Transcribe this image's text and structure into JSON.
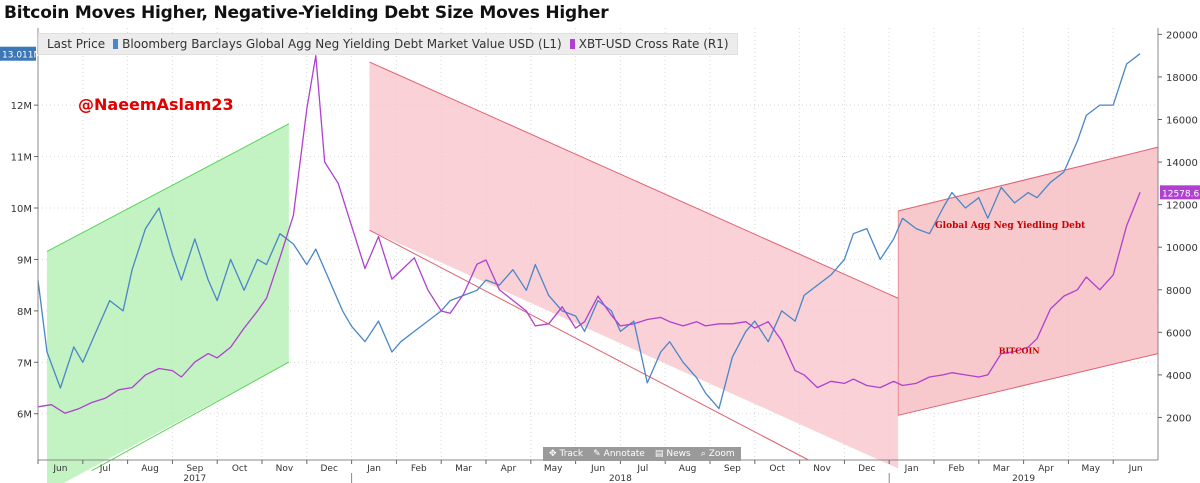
{
  "chart_data": {
    "type": "line",
    "title": "Bitcoin Moves Higher, Negative-Yielding Debt Size Moves Higher",
    "legend": {
      "lead": "Last Price",
      "entries": [
        {
          "name": "Bloomberg Barclays Global Agg Neg Yielding Debt Market Value USD  (L1)",
          "color": "#4a86c8"
        },
        {
          "name": "XBT-USD Cross Rate  (R1)",
          "color": "#b040d0"
        }
      ],
      "placement": "top-left"
    },
    "watermark": "@NaeemAslam23",
    "left_axis": {
      "ticks": [
        "6M",
        "7M",
        "8M",
        "9M",
        "10M",
        "11M",
        "12M"
      ],
      "values": [
        6,
        7,
        8,
        9,
        10,
        11,
        12
      ],
      "range": [
        5.1,
        13.5
      ],
      "last_value_label": "13.011M"
    },
    "right_axis": {
      "ticks": [
        "2000",
        "4000",
        "6000",
        "8000",
        "10000",
        "12000",
        "14000",
        "16000",
        "18000",
        "20000"
      ],
      "values": [
        2000,
        4000,
        6000,
        8000,
        10000,
        12000,
        14000,
        16000,
        18000,
        20000
      ],
      "range": [
        0,
        20300
      ],
      "last_value_label": "12578.68"
    },
    "x_axis": {
      "months": [
        "Jun",
        "Jul",
        "Aug",
        "Sep",
        "Oct",
        "Nov",
        "Dec",
        "Jan",
        "Feb",
        "Mar",
        "Apr",
        "May",
        "Jun",
        "Jul",
        "Aug",
        "Sep",
        "Oct",
        "Nov",
        "Dec",
        "Jan",
        "Feb",
        "Mar",
        "Apr",
        "May",
        "Jun"
      ],
      "years": [
        "2017",
        "2018",
        "2019"
      ],
      "range": [
        0,
        25
      ]
    },
    "series": [
      {
        "name": "Bloomberg Barclays Global Agg Neg Yielding Debt Market Value USD  (L1)",
        "axis": "left",
        "color": "#4a86c8",
        "x": [
          0,
          0.2,
          0.5,
          0.8,
          1.0,
          1.3,
          1.6,
          1.9,
          2.1,
          2.4,
          2.7,
          3.0,
          3.2,
          3.5,
          3.8,
          4.0,
          4.3,
          4.6,
          4.9,
          5.1,
          5.4,
          5.7,
          6.0,
          6.2,
          6.5,
          6.8,
          7.0,
          7.3,
          7.6,
          7.9,
          8.1,
          8.4,
          8.7,
          9.0,
          9.2,
          9.5,
          9.8,
          10.0,
          10.3,
          10.6,
          10.9,
          11.1,
          11.4,
          11.7,
          12.0,
          12.2,
          12.5,
          12.8,
          13.0,
          13.3,
          13.6,
          13.9,
          14.1,
          14.4,
          14.7,
          14.9,
          15.2,
          15.5,
          15.8,
          16.0,
          16.3,
          16.6,
          16.9,
          17.1,
          17.4,
          17.7,
          18.0,
          18.2,
          18.5,
          18.8,
          19.1,
          19.3,
          19.6,
          19.9,
          20.2,
          20.4,
          20.7,
          21.0,
          21.2,
          21.5,
          21.8,
          22.1,
          22.3,
          22.6,
          22.9,
          23.2,
          23.4,
          23.7,
          24.0,
          24.3,
          24.6
        ],
        "values": [
          8.6,
          7.2,
          6.5,
          7.3,
          7.0,
          7.6,
          8.2,
          8.0,
          8.8,
          9.6,
          10.0,
          9.1,
          8.6,
          9.4,
          8.6,
          8.2,
          9.0,
          8.4,
          9.0,
          8.9,
          9.5,
          9.3,
          8.9,
          9.2,
          8.6,
          8.0,
          7.7,
          7.4,
          7.8,
          7.2,
          7.4,
          7.6,
          7.8,
          8.0,
          8.2,
          8.3,
          8.4,
          8.6,
          8.5,
          8.8,
          8.4,
          8.9,
          8.3,
          8.0,
          7.9,
          7.6,
          8.2,
          8.0,
          7.6,
          7.8,
          6.6,
          7.2,
          7.4,
          7.0,
          6.7,
          6.4,
          6.1,
          7.1,
          7.6,
          7.8,
          7.4,
          8.0,
          7.8,
          8.3,
          8.5,
          8.7,
          9.0,
          9.5,
          9.6,
          9.0,
          9.4,
          9.8,
          9.6,
          9.5,
          10.0,
          10.3,
          10.0,
          10.2,
          9.8,
          10.4,
          10.1,
          10.3,
          10.2,
          10.5,
          10.7,
          11.3,
          11.8,
          12.0,
          12.0,
          12.8,
          13.0
        ]
      },
      {
        "name": "XBT-USD Cross Rate  (R1)",
        "axis": "right",
        "color": "#b040d0",
        "x": [
          0,
          0.3,
          0.6,
          0.9,
          1.2,
          1.5,
          1.8,
          2.1,
          2.4,
          2.7,
          3.0,
          3.2,
          3.5,
          3.8,
          4.0,
          4.3,
          4.6,
          4.9,
          5.1,
          5.4,
          5.7,
          6.0,
          6.2,
          6.4,
          6.7,
          7.0,
          7.3,
          7.6,
          7.9,
          8.1,
          8.4,
          8.7,
          9.0,
          9.2,
          9.5,
          9.8,
          10.0,
          10.3,
          10.6,
          10.9,
          11.1,
          11.4,
          11.7,
          12.0,
          12.2,
          12.5,
          12.8,
          13.0,
          13.3,
          13.6,
          13.9,
          14.1,
          14.4,
          14.7,
          14.9,
          15.2,
          15.5,
          15.8,
          16.0,
          16.3,
          16.6,
          16.9,
          17.1,
          17.4,
          17.7,
          18.0,
          18.2,
          18.5,
          18.8,
          19.1,
          19.3,
          19.6,
          19.9,
          20.2,
          20.4,
          20.7,
          21.0,
          21.2,
          21.5,
          21.8,
          22.1,
          22.3,
          22.6,
          22.9,
          23.2,
          23.4,
          23.7,
          24.0,
          24.3,
          24.6
        ],
        "values": [
          2500,
          2600,
          2200,
          2400,
          2700,
          2900,
          3300,
          3400,
          4000,
          4300,
          4200,
          3900,
          4600,
          5000,
          4800,
          5300,
          6200,
          7000,
          7600,
          9500,
          11500,
          16500,
          19000,
          14000,
          13000,
          11000,
          9000,
          10500,
          8500,
          8900,
          9500,
          8000,
          7000,
          6900,
          7800,
          9200,
          9400,
          8000,
          7500,
          7000,
          6300,
          6400,
          7200,
          6200,
          6500,
          7700,
          6800,
          6300,
          6400,
          6600,
          6700,
          6500,
          6300,
          6500,
          6300,
          6400,
          6400,
          6500,
          6200,
          6500,
          5600,
          4200,
          4000,
          3400,
          3700,
          3600,
          3800,
          3500,
          3400,
          3700,
          3500,
          3600,
          3900,
          4000,
          4100,
          4000,
          3900,
          4000,
          5000,
          5100,
          5300,
          5700,
          7100,
          7700,
          8000,
          8600,
          8000,
          8700,
          11000,
          12578
        ]
      }
    ],
    "channels": [
      {
        "name": "green-2017",
        "color": "#b8f0b8",
        "stroke": "#59d359"
      },
      {
        "name": "red-downtrend-2018",
        "color": "#f8c6cc",
        "stroke": "#e06070"
      },
      {
        "name": "red-uptrend-2019",
        "color": "#f6bfc3",
        "stroke": "#e06070"
      }
    ],
    "annotations": [
      {
        "text": "Global Agg Neg Yiedling Debt",
        "color": "#cc0000"
      },
      {
        "text": "BITCOIN",
        "color": "#cc0000"
      }
    ],
    "toolbar": {
      "track": "Track",
      "annotate": "Annotate",
      "news": "News",
      "zoom": "Zoom"
    }
  }
}
